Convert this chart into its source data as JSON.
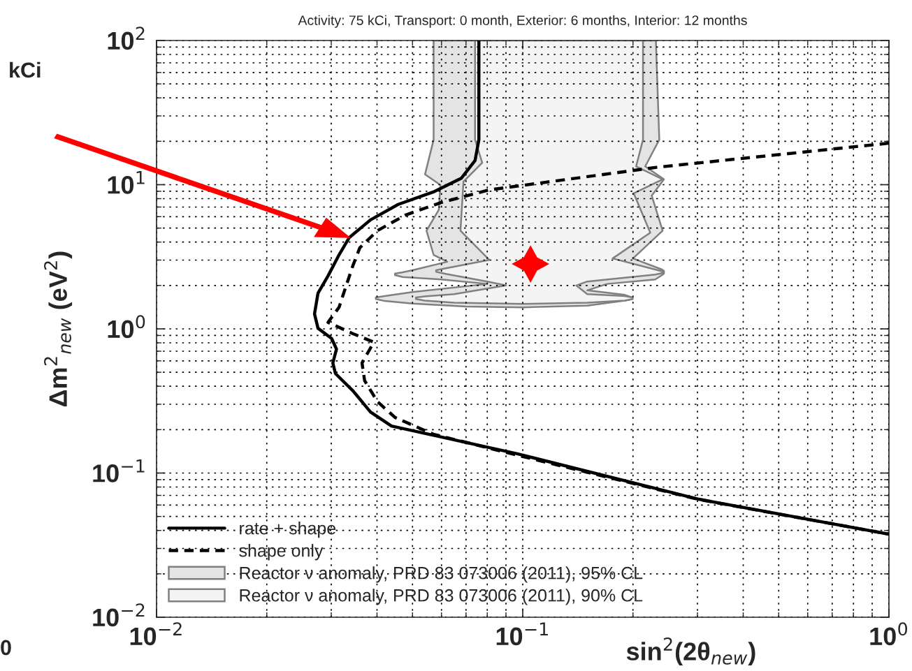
{
  "chart_data": {
    "type": "line",
    "title": "Activity: 75 kCi, Transport: 0 month, Exterior: 6 months, Interior: 12 months",
    "xlabel": "sin$^{2}$(2θ$_{new}$)",
    "ylabel": "Δm$^{2}$$_{new}$ (eV$^{2}$)",
    "annotations": [
      "kCi",
      "0"
    ],
    "log": "xy",
    "grid": true,
    "legend": "bottom left",
    "xlim": [
      0.01,
      1
    ],
    "xticks": [
      {
        "value": 0.01,
        "label": "10$^{−2}$"
      },
      {
        "value": 0.1,
        "label": "10$^{−1}$"
      },
      {
        "value": 1,
        "label": "10$^{0}$"
      }
    ],
    "ylim": [
      0.01,
      100
    ],
    "yticks": [
      {
        "value": 0.01,
        "label": "10$^{−2}$"
      },
      {
        "value": 0.1,
        "label": "10$^{−1}$"
      },
      {
        "value": 1,
        "label": "10$^{0}$"
      },
      {
        "value": 10,
        "label": "10$^{1}$"
      },
      {
        "value": 100,
        "label": "10$^{2}$"
      }
    ],
    "series": [
      {
        "type": "line",
        "name": "rate + shape",
        "color": "#000000",
        "line_style": "solid",
        "x": [
          0.0759,
          0.0759,
          0.0741,
          0.068,
          0.057,
          0.0457,
          0.0384,
          0.0336,
          0.0315,
          0.0294,
          0.0276,
          0.027,
          0.0276,
          0.0301,
          0.031,
          0.0303,
          0.0308,
          0.0344,
          0.0384,
          0.0438,
          0.0966,
          0.303,
          1
        ],
        "values": [
          100,
          20.5,
          14.7,
          11.1,
          8.9,
          7.3,
          5.7,
          4.3,
          3.26,
          2.33,
          1.77,
          1.27,
          1.01,
          0.855,
          0.724,
          0.58,
          0.49,
          0.371,
          0.265,
          0.212,
          0.136,
          0.0658,
          0.0377
        ]
      },
      {
        "type": "line",
        "name": "shape only",
        "color": "#000000",
        "line_style": "dashed",
        "x": [
          1,
          0.232,
          0.081,
          0.0596,
          0.0478,
          0.0401,
          0.0359,
          0.0344,
          0.0329,
          0.0315,
          0.0294,
          0.0344,
          0.0392,
          0.0364,
          0.037,
          0.0401,
          0.0448,
          0.057,
          0.0966,
          0.303,
          1
        ],
        "values": [
          19.4,
          13.2,
          9.2,
          7.5,
          6.15,
          4.8,
          3.65,
          2.76,
          1.97,
          1.41,
          1.11,
          0.925,
          0.809,
          0.58,
          0.438,
          0.313,
          0.243,
          0.186,
          0.133,
          0.0655,
          0.0377
        ]
      },
      {
        "type": "area",
        "name": "Reactor ν anomaly, PRD 83 073006 (2011), 95% CL",
        "color": "#e4e4e4",
        "x": [
          0.0571,
          0.0571,
          0.0541,
          0.0596,
          0.059,
          0.0546,
          0.0571,
          0.0622,
          0.05,
          0.047,
          0.0448,
          0.0448,
          0.047,
          0.06,
          0.08,
          0.05,
          0.042,
          0.0397,
          0.0397,
          0.042,
          0.05,
          0.07,
          0.1,
          0.15,
          0.19,
          0.1995,
          0.1995,
          0.19,
          0.15,
          0.17,
          0.23,
          0.24,
          0.243,
          0.243,
          0.24,
          0.2,
          0.241,
          0.225,
          0.243,
          0.216,
          0.236,
          0.231
        ],
        "values": [
          100,
          20.5,
          11.8,
          9.95,
          6.7,
          4.8,
          3.26,
          2.92,
          2.55,
          2.47,
          2.42,
          2.36,
          2.29,
          2.2,
          2.05,
          1.8,
          1.69,
          1.65,
          1.61,
          1.56,
          1.5,
          1.43,
          1.41,
          1.45,
          1.57,
          1.61,
          1.65,
          1.72,
          1.85,
          2.05,
          2.2,
          2.36,
          2.42,
          2.52,
          2.58,
          3.08,
          4.8,
          8.4,
          10.9,
          13.4,
          20.5,
          100
        ]
      },
      {
        "type": "area",
        "name": "Reactor ν anomaly, PRD 83 073006 (2011), 90% CL",
        "color": "#f4f4f4",
        "x": [
          0.0741,
          0.0741,
          0.0775,
          0.0689,
          0.0676,
          0.081,
          0.062,
          0.058,
          0.058,
          0.062,
          0.08,
          0.09,
          0.065,
          0.054,
          0.0511,
          0.0511,
          0.054,
          0.065,
          0.1,
          0.15,
          0.19,
          0.1995,
          0.1995,
          0.19,
          0.15,
          0.14,
          0.15,
          0.23,
          0.241,
          0.241,
          0.23,
          0.176,
          0.223,
          0.201,
          0.241,
          0.204,
          0.213,
          0.213
        ],
        "values": [
          100,
          20.5,
          14.2,
          10.5,
          4.8,
          3.01,
          2.64,
          2.55,
          2.49,
          2.4,
          2.13,
          2.0,
          1.74,
          1.68,
          1.65,
          1.61,
          1.57,
          1.52,
          1.49,
          1.52,
          1.57,
          1.61,
          1.65,
          1.69,
          1.74,
          2.0,
          2.13,
          2.38,
          2.44,
          2.5,
          2.58,
          3.08,
          4.65,
          8.7,
          10.9,
          13.4,
          20.5,
          100
        ]
      },
      {
        "type": "scatter",
        "color": "#ff0000",
        "marker": "star",
        "x": [
          0.105
        ],
        "values": [
          2.82
        ]
      }
    ]
  }
}
